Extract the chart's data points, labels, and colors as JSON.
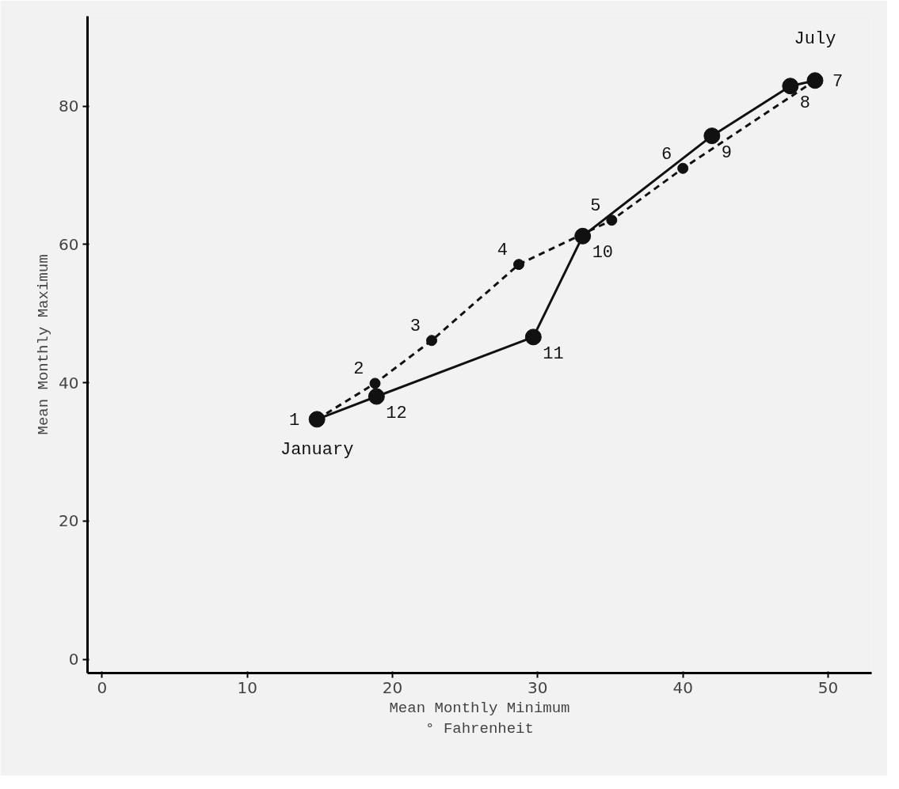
{
  "chart_data": {
    "type": "line",
    "xlabel": "Mean Monthly Minimum\n° Fahrenheit",
    "ylabel": "Mean Monthly Maximum",
    "series": [
      {
        "color": "#111111",
        "line_style": "dashed",
        "x": [
          14.8,
          18.8,
          22.7,
          28.7,
          35.1,
          40.0,
          49.1
        ],
        "values": [
          34.7,
          39.9,
          46.1,
          57.1,
          63.5,
          71.0,
          83.7
        ]
      },
      {
        "color": "#111111",
        "line_style": "solid",
        "x": [
          49.1,
          47.4,
          42.0,
          33.1,
          29.7,
          18.9,
          14.8
        ],
        "values": [
          83.7,
          82.9,
          75.7,
          61.2,
          46.6,
          38.0,
          34.7
        ]
      }
    ],
    "marker": "circle",
    "grid": false,
    "xlim": [
      -1,
      53
    ],
    "ylim": [
      -2,
      93
    ],
    "xticks": [
      0,
      10,
      20,
      30,
      40,
      50
    ],
    "yticks": [
      0,
      20,
      40,
      60,
      80
    ],
    "annotations": [
      {
        "text": "1",
        "x": 14.8,
        "y": 34.7
      },
      {
        "text": "January",
        "x": 14.8,
        "y": 34.7
      },
      {
        "text": "2",
        "x": 18.8,
        "y": 39.9
      },
      {
        "text": "12",
        "x": 18.9,
        "y": 38.0
      },
      {
        "text": "3",
        "x": 22.7,
        "y": 46.1
      },
      {
        "text": "4",
        "x": 28.7,
        "y": 57.1
      },
      {
        "text": "11",
        "x": 29.7,
        "y": 46.6
      },
      {
        "text": "10",
        "x": 33.1,
        "y": 61.2
      },
      {
        "text": "5",
        "x": 35.1,
        "y": 63.5
      },
      {
        "text": "6",
        "x": 40.0,
        "y": 71.0
      },
      {
        "text": "9",
        "x": 42.0,
        "y": 75.7
      },
      {
        "text": "8",
        "x": 47.4,
        "y": 82.9
      },
      {
        "text": "7",
        "x": 49.1,
        "y": 83.7
      },
      {
        "text": "July",
        "x": 49.1,
        "y": 83.7
      }
    ]
  }
}
